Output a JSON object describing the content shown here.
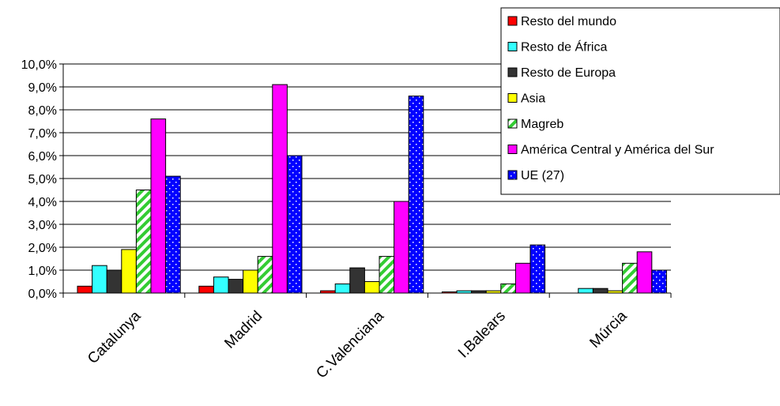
{
  "chart_data": {
    "type": "bar",
    "categories": [
      "Catalunya",
      "Madrid",
      "C.Valenciana",
      "I.Balears",
      "Múrcia"
    ],
    "series": [
      {
        "name": "Resto del mundo",
        "color": "#ff0000",
        "pattern": "solid",
        "values": [
          0.3,
          0.3,
          0.1,
          0.05,
          0.0
        ]
      },
      {
        "name": "Resto de África",
        "color": "#33ffff",
        "pattern": "solid",
        "values": [
          1.2,
          0.7,
          0.4,
          0.1,
          0.2
        ]
      },
      {
        "name": "Resto de Europa",
        "color": "#333333",
        "pattern": "solid",
        "values": [
          1.0,
          0.6,
          1.1,
          0.1,
          0.2
        ]
      },
      {
        "name": "Asia",
        "color": "#ffff00",
        "pattern": "solid",
        "values": [
          1.9,
          1.0,
          0.5,
          0.1,
          0.1
        ]
      },
      {
        "name": "Magreb",
        "color": "#33cc33",
        "pattern": "diagonal-stripes",
        "values": [
          4.5,
          1.6,
          1.6,
          0.4,
          1.3
        ]
      },
      {
        "name": "América Central y América del Sur",
        "color": "#ff00ff",
        "pattern": "solid",
        "values": [
          7.6,
          9.1,
          4.0,
          1.3,
          1.8
        ]
      },
      {
        "name": "UE (27)",
        "color": "#0000ff",
        "pattern": "dots",
        "values": [
          5.1,
          6.0,
          8.6,
          2.1,
          1.0
        ]
      }
    ],
    "ylim": [
      0,
      10
    ],
    "yticks": [
      "0,0%",
      "1,0%",
      "2,0%",
      "3,0%",
      "4,0%",
      "5,0%",
      "6,0%",
      "7,0%",
      "8,0%",
      "9,0%",
      "10,0%"
    ],
    "grid": true,
    "legend_position": "top-right",
    "title": "",
    "xlabel": "",
    "ylabel": ""
  }
}
